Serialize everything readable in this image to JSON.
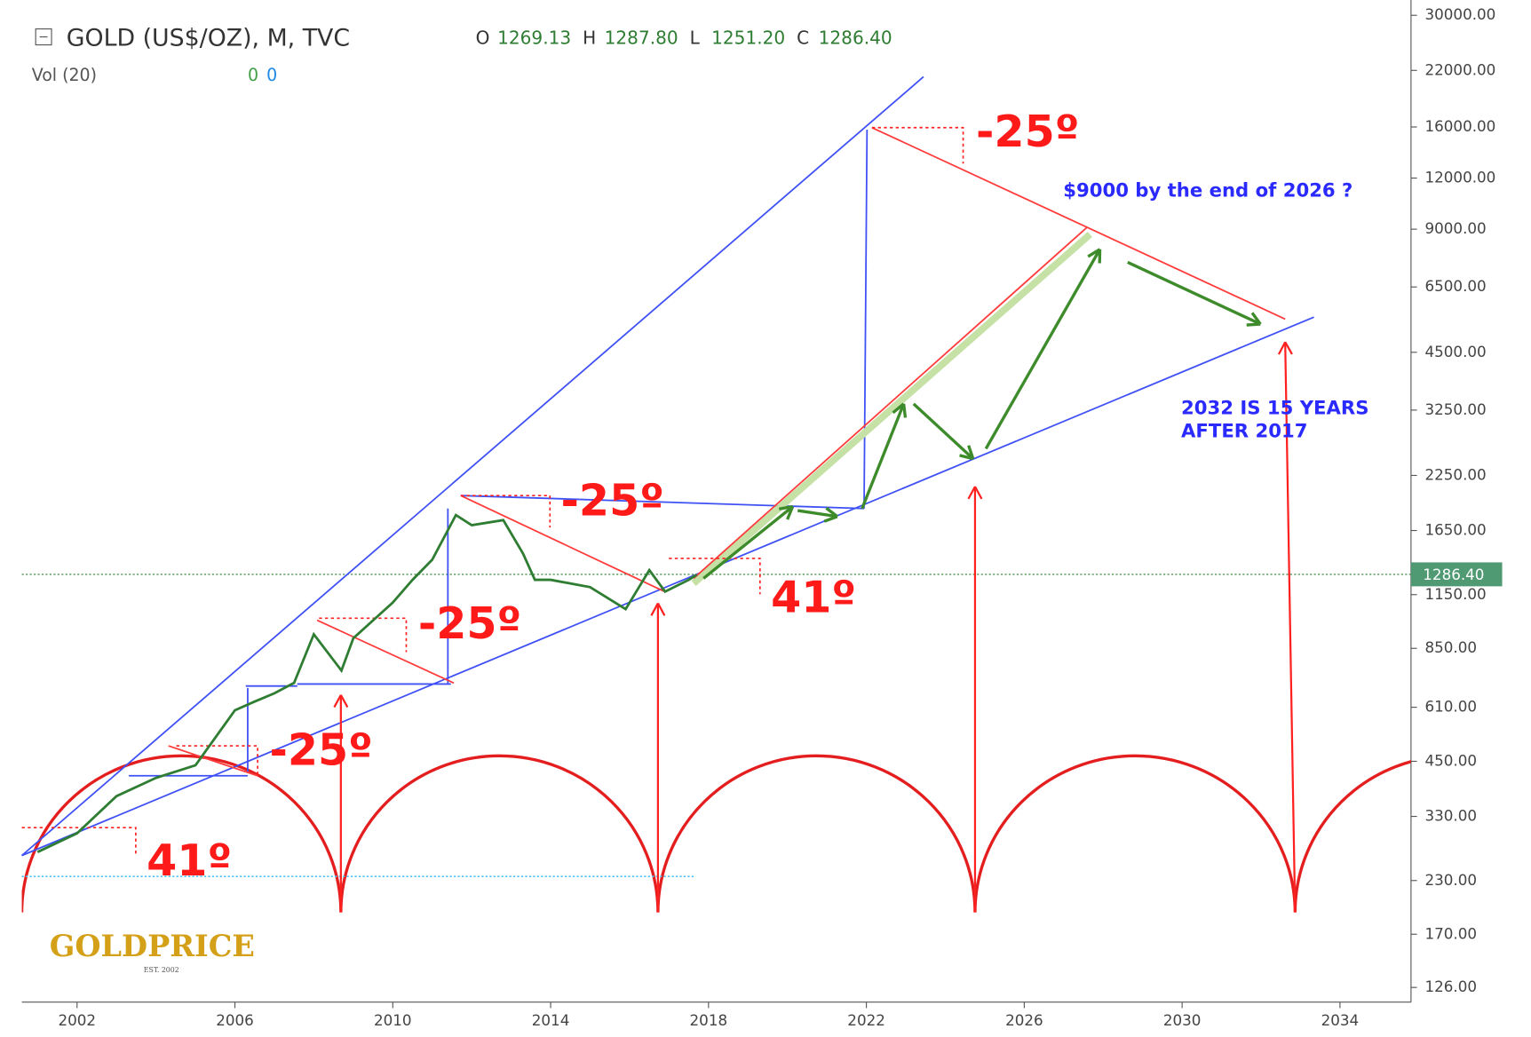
{
  "chart_data": {
    "type": "line",
    "title": "GOLD (US$/OZ), M, TVC",
    "ohlc": [
      {
        "key": "O",
        "value": "1269.13"
      },
      {
        "key": "H",
        "value": "1287.80"
      },
      {
        "key": "L",
        "value": "1251.20"
      },
      {
        "key": "C",
        "value": "1286.40"
      }
    ],
    "indicator": "Vol (20)",
    "indicator_values": [
      "0",
      "0"
    ],
    "last_price": "1286.40",
    "x": [
      2001,
      2002,
      2003,
      2004,
      2005,
      2006,
      2006.5,
      2007,
      2007.5,
      2008,
      2008.7,
      2009,
      2010,
      2010.5,
      2011,
      2011.6,
      2012,
      2012.8,
      2013.3,
      2013.6,
      2014,
      2015,
      2015.9,
      2016.5,
      2016.9,
      2017.5,
      2017.7
    ],
    "series": [
      {
        "name": "GOLD",
        "color": "#2e7d32",
        "values": [
          270,
          300,
          370,
          410,
          440,
          600,
          630,
          660,
          700,
          920,
          750,
          900,
          1100,
          1250,
          1400,
          1800,
          1700,
          1750,
          1450,
          1250,
          1250,
          1200,
          1060,
          1320,
          1170,
          1250,
          1286.4
        ]
      }
    ],
    "xlim": [
      2000.6,
      2035.8
    ],
    "xticks": [
      2002,
      2006,
      2010,
      2014,
      2018,
      2022,
      2026,
      2030,
      2034
    ],
    "ylim": [
      116,
      32700
    ],
    "log_scale": true,
    "yticks": [
      {
        "value": 126,
        "label": "126.00"
      },
      {
        "value": 170,
        "label": "170.00"
      },
      {
        "value": 230,
        "label": "230.00"
      },
      {
        "value": 330,
        "label": "330.00"
      },
      {
        "value": 450,
        "label": "450.00"
      },
      {
        "value": 610,
        "label": "610.00"
      },
      {
        "value": 850,
        "label": "850.00"
      },
      {
        "value": 1150,
        "label": "1150.00"
      },
      {
        "value": 1650,
        "label": "1650.00"
      },
      {
        "value": 2250,
        "label": "2250.00"
      },
      {
        "value": 3250,
        "label": "3250.00"
      },
      {
        "value": 4500,
        "label": "4500.00"
      },
      {
        "value": 6500,
        "label": "6500.00"
      },
      {
        "value": 9000,
        "label": "9000.00"
      },
      {
        "value": 12000,
        "label": "12000.00"
      },
      {
        "value": 16000,
        "label": "16000.00"
      },
      {
        "value": 22000,
        "label": "22000.00"
      },
      {
        "value": 30000,
        "label": "30000.00"
      }
    ],
    "annotations": [
      "-25º",
      "-25º",
      "-25º",
      "-25º",
      "41º",
      "41º",
      "$9000 by the end of 2026 ?",
      "2032 IS 15 YEARS",
      "AFTER 2017"
    ],
    "logo": "GOLDPRICE",
    "logo_sub": "EST. 2002"
  }
}
